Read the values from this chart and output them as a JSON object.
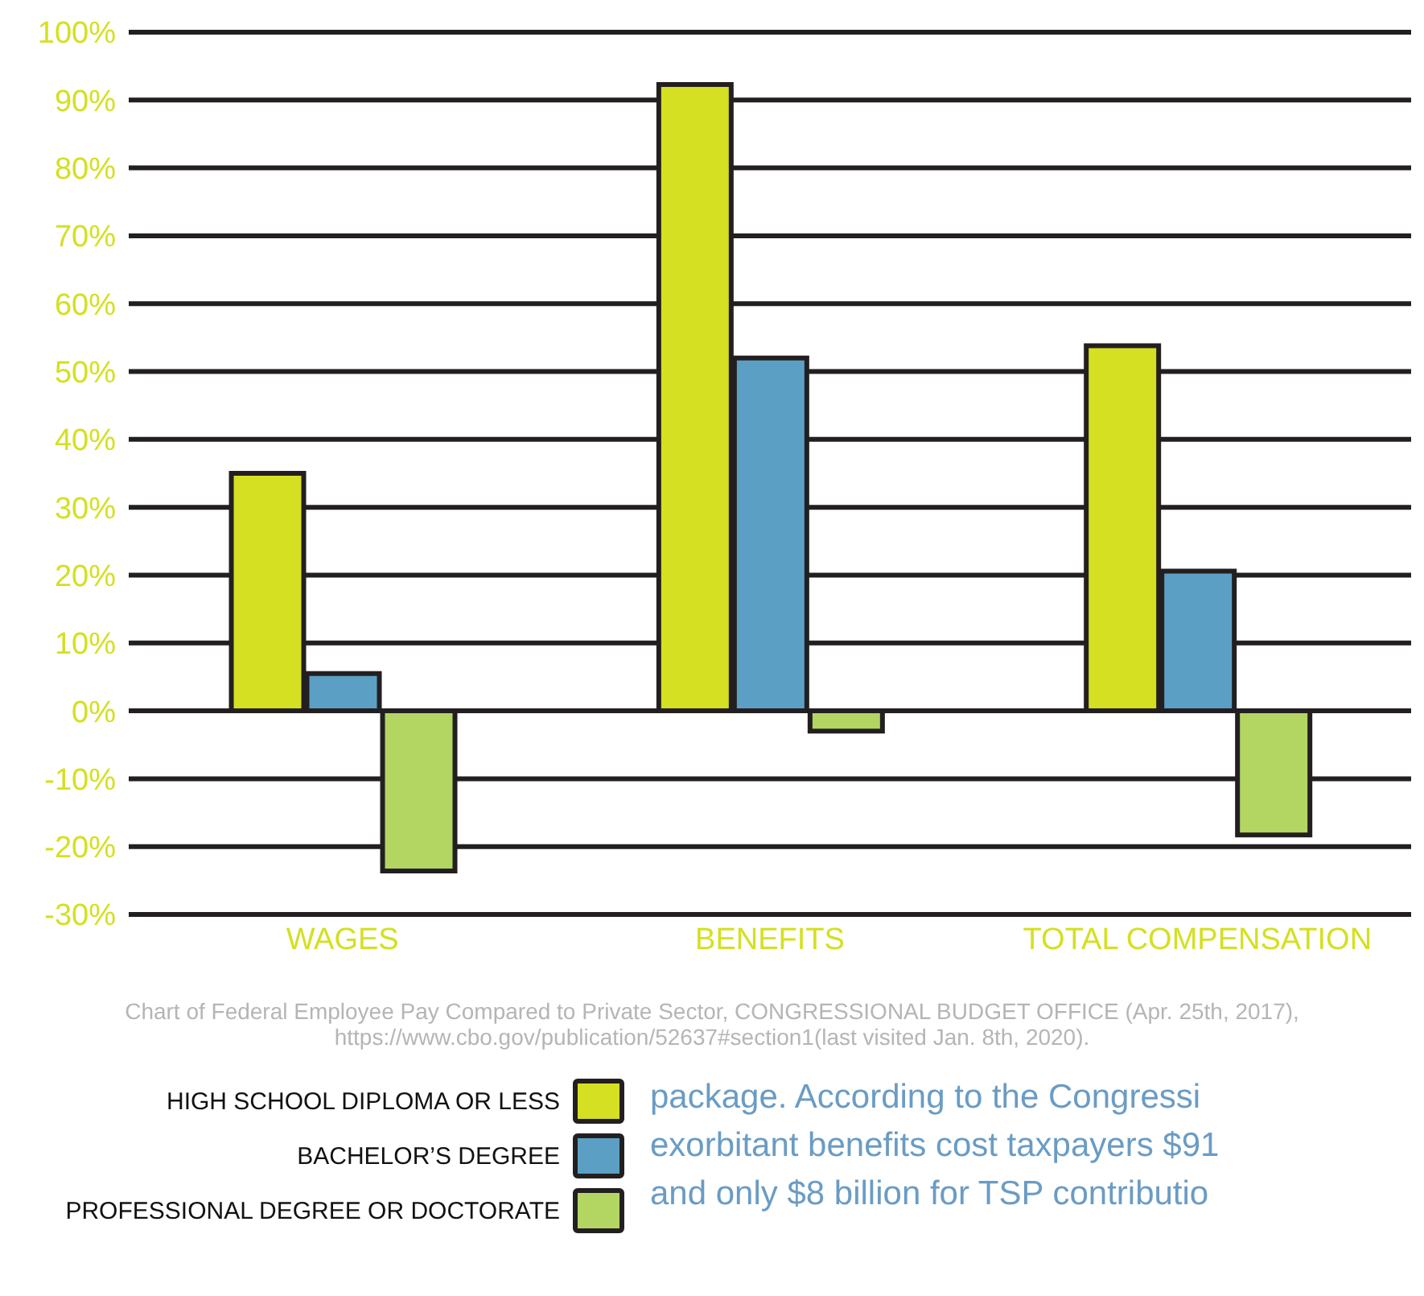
{
  "chart_data": {
    "type": "bar",
    "categories": [
      "WAGES",
      "BENEFITS",
      "TOTAL COMPENSATION"
    ],
    "series": [
      {
        "name": "HIGH SCHOOL DIPLOMA OR LESS",
        "color": "#d4e021",
        "values": [
          35,
          92.3,
          53.8
        ]
      },
      {
        "name": "BACHELOR’S DEGREE",
        "color": "#5ba0c4",
        "values": [
          5.5,
          52,
          20.6
        ]
      },
      {
        "name": "PROFESSIONAL DEGREE OR DOCTORATE",
        "color": "#b3d663",
        "values": [
          -23.6,
          -3,
          -18.3
        ]
      }
    ],
    "ylim": [
      -30,
      100
    ],
    "yticks": [
      {
        "value": -30,
        "label": "-30%"
      },
      {
        "value": -20,
        "label": "-20%"
      },
      {
        "value": -10,
        "label": "-10%"
      },
      {
        "value": 0,
        "label": "0%"
      },
      {
        "value": 10,
        "label": "10%"
      },
      {
        "value": 20,
        "label": "20%"
      },
      {
        "value": 30,
        "label": "30%"
      },
      {
        "value": 40,
        "label": "40%"
      },
      {
        "value": 50,
        "label": "50%"
      },
      {
        "value": 60,
        "label": "60%"
      },
      {
        "value": 70,
        "label": "70%"
      },
      {
        "value": 80,
        "label": "80%"
      },
      {
        "value": 90,
        "label": "90%"
      },
      {
        "value": 100,
        "label": "100%"
      }
    ],
    "grid": "y",
    "legend": "bottom left",
    "annotations": [
      "Chart of Federal Employee Pay Compared to Private Sector, CONGRESSIONAL BUDGET OFFICE (Apr. 25th, 2017), https://www.cbo.gov/publication/52637#section1(last visited Jan. 8th, 2020).",
      "package. According to the Congressi",
      "exorbitant benefits cost taxpayers $91",
      "and only $8 billion for TSP contributio"
    ]
  }
}
